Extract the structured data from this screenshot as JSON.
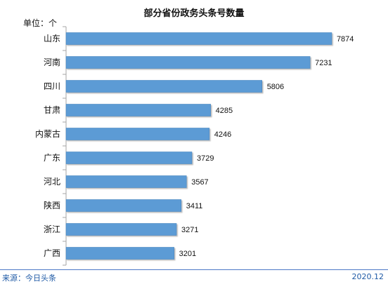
{
  "chart_data": {
    "type": "bar",
    "orientation": "horizontal",
    "title": "部分省份政务头条号数量",
    "unit_label": "单位：个",
    "categories": [
      "山东",
      "河南",
      "四川",
      "甘肃",
      "内蒙古",
      "广东",
      "河北",
      "陕西",
      "浙江",
      "广西"
    ],
    "values": [
      7874,
      7231,
      5806,
      4285,
      4246,
      3729,
      3567,
      3411,
      3271,
      3201
    ],
    "data_labels": [
      "7874",
      "7231",
      "5806",
      "4285",
      "4246",
      "3729",
      "3567",
      "3411",
      "3271",
      "3201"
    ],
    "xlim": [
      0,
      8000
    ],
    "grid": false,
    "legend": "none",
    "bar_color": "#5b9bd5",
    "bar_stroke_color": "#4a86c0"
  },
  "footer": {
    "source": "来源：今日头条",
    "date": "2020.12"
  },
  "colors": {
    "footer_text": "#1f5aa6",
    "footer_line": "#4c78c6",
    "axis": "#a6a6a6"
  }
}
